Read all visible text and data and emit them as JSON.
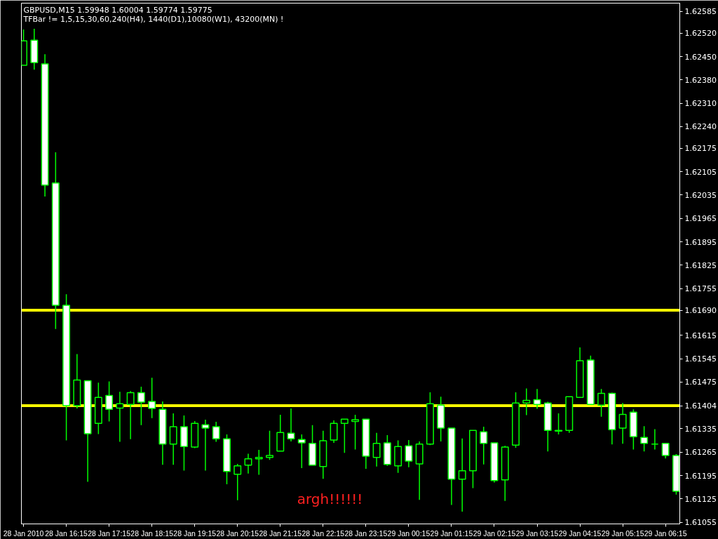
{
  "chart_data": {
    "type": "candlestick",
    "title": "GBPUSD,M15  1.59948 1.60004 1.59774 1.59775",
    "subtitle": "TFBar != 1,5,15,30,60,240(H4), 1440(D1),10080(W1), 43200(MN) !",
    "color": "#00ff00",
    "x": [
      "2010-01-28T15:15",
      "2010-01-28T15:30",
      "2010-01-28T15:45",
      "2010-01-28T16:00",
      "2010-01-28T16:15",
      "2010-01-28T16:30",
      "2010-01-28T16:45",
      "2010-01-28T17:00",
      "2010-01-28T17:15",
      "2010-01-28T17:30",
      "2010-01-28T17:45",
      "2010-01-28T18:00",
      "2010-01-28T18:15",
      "2010-01-28T18:30",
      "2010-01-28T18:45",
      "2010-01-28T19:00",
      "2010-01-28T19:15",
      "2010-01-28T19:30",
      "2010-01-28T19:45",
      "2010-01-28T20:00",
      "2010-01-28T20:15",
      "2010-01-28T20:30",
      "2010-01-28T20:45",
      "2010-01-28T21:00",
      "2010-01-28T21:15",
      "2010-01-28T21:30",
      "2010-01-28T21:45",
      "2010-01-28T22:00",
      "2010-01-28T22:15",
      "2010-01-28T22:30",
      "2010-01-28T22:45",
      "2010-01-28T23:00",
      "2010-01-28T23:15",
      "2010-01-28T23:30",
      "2010-01-28T23:45",
      "2010-01-29T00:00",
      "2010-01-29T00:15",
      "2010-01-29T00:30",
      "2010-01-29T00:45",
      "2010-01-29T01:00",
      "2010-01-29T01:15",
      "2010-01-29T01:30",
      "2010-01-29T01:45",
      "2010-01-29T02:00",
      "2010-01-29T02:15",
      "2010-01-29T02:30",
      "2010-01-29T02:45",
      "2010-01-29T03:00",
      "2010-01-29T03:15",
      "2010-01-29T03:30",
      "2010-01-29T03:45",
      "2010-01-29T04:00",
      "2010-01-29T04:15",
      "2010-01-29T04:30",
      "2010-01-29T04:45",
      "2010-01-29T05:00",
      "2010-01-29T05:15",
      "2010-01-29T05:30",
      "2010-01-29T05:45",
      "2010-01-29T06:00",
      "2010-01-29T06:15",
      "2010-01-29T06:30"
    ],
    "ohlc": [
      [
        1.62424,
        1.62531,
        1.62424,
        1.62497
      ],
      [
        1.62499,
        1.62533,
        1.62411,
        1.62432
      ],
      [
        1.62428,
        1.62457,
        1.62031,
        1.62065
      ],
      [
        1.62071,
        1.62163,
        1.61634,
        1.61705
      ],
      [
        1.61705,
        1.61738,
        1.613,
        1.61404
      ],
      [
        1.61404,
        1.61559,
        1.61396,
        1.61481
      ],
      [
        1.61479,
        1.61479,
        1.61176,
        1.6132
      ],
      [
        1.61351,
        1.61473,
        1.61319,
        1.61429
      ],
      [
        1.61435,
        1.61477,
        1.61357,
        1.61393
      ],
      [
        1.61397,
        1.61446,
        1.61296,
        1.6141
      ],
      [
        1.61408,
        1.61448,
        1.61304,
        1.61443
      ],
      [
        1.61443,
        1.61461,
        1.61346,
        1.61415
      ],
      [
        1.61417,
        1.61488,
        1.61367,
        1.61396
      ],
      [
        1.61393,
        1.61417,
        1.61227,
        1.61289
      ],
      [
        1.61289,
        1.61381,
        1.61227,
        1.61341
      ],
      [
        1.61341,
        1.61375,
        1.6121,
        1.61282
      ],
      [
        1.6128,
        1.61358,
        1.61277,
        1.61351
      ],
      [
        1.61347,
        1.61362,
        1.6121,
        1.61337
      ],
      [
        1.61341,
        1.61356,
        1.61296,
        1.61305
      ],
      [
        1.61305,
        1.61318,
        1.61169,
        1.61207
      ],
      [
        1.61199,
        1.6123,
        1.61121,
        1.61224
      ],
      [
        1.61226,
        1.6126,
        1.61201,
        1.61245
      ],
      [
        1.61245,
        1.61272,
        1.61197,
        1.61249
      ],
      [
        1.61249,
        1.61329,
        1.61242,
        1.61255
      ],
      [
        1.61268,
        1.61377,
        1.61268,
        1.61324
      ],
      [
        1.61322,
        1.61396,
        1.61297,
        1.61305
      ],
      [
        1.61303,
        1.61318,
        1.61217,
        1.61293
      ],
      [
        1.61291,
        1.61346,
        1.61226,
        1.61226
      ],
      [
        1.61222,
        1.61329,
        1.61185,
        1.61299
      ],
      [
        1.61301,
        1.6136,
        1.61293,
        1.61351
      ],
      [
        1.61351,
        1.61364,
        1.61263,
        1.61364
      ],
      [
        1.61357,
        1.61377,
        1.61273,
        1.61362
      ],
      [
        1.61364,
        1.61364,
        1.61215,
        1.61253
      ],
      [
        1.61249,
        1.61323,
        1.61222,
        1.61291
      ],
      [
        1.61293,
        1.61316,
        1.61224,
        1.61228
      ],
      [
        1.61224,
        1.613,
        1.61203,
        1.61282
      ],
      [
        1.61284,
        1.61301,
        1.6122,
        1.61238
      ],
      [
        1.6123,
        1.61297,
        1.61122,
        1.61289
      ],
      [
        1.61289,
        1.61444,
        1.61286,
        1.6141
      ],
      [
        1.61406,
        1.61431,
        1.61297,
        1.61337
      ],
      [
        1.61337,
        1.61337,
        1.61107,
        1.61184
      ],
      [
        1.61184,
        1.61306,
        1.61087,
        1.61209
      ],
      [
        1.61209,
        1.6133,
        1.61157,
        1.6133
      ],
      [
        1.61326,
        1.61341,
        1.61228,
        1.61291
      ],
      [
        1.61293,
        1.61293,
        1.61174,
        1.6118
      ],
      [
        1.61182,
        1.61284,
        1.61119,
        1.6128
      ],
      [
        1.61286,
        1.61444,
        1.61278,
        1.61412
      ],
      [
        1.61412,
        1.61456,
        1.61376,
        1.6142
      ],
      [
        1.61422,
        1.61454,
        1.61395,
        1.61408
      ],
      [
        1.61412,
        1.61416,
        1.61267,
        1.6133
      ],
      [
        1.6133,
        1.61381,
        1.61318,
        1.61328
      ],
      [
        1.6133,
        1.61431,
        1.61323,
        1.61431
      ],
      [
        1.61429,
        1.61579,
        1.61429,
        1.61539
      ],
      [
        1.61541,
        1.61554,
        1.61408,
        1.61408
      ],
      [
        1.61406,
        1.61454,
        1.61371,
        1.61441
      ],
      [
        1.61441,
        1.61443,
        1.61288,
        1.61332
      ],
      [
        1.61337,
        1.61412,
        1.6129,
        1.61378
      ],
      [
        1.61385,
        1.61393,
        1.61273,
        1.61311
      ],
      [
        1.61309,
        1.61343,
        1.61267,
        1.61291
      ],
      [
        1.61289,
        1.61334,
        1.61273,
        1.61289
      ],
      [
        1.61291,
        1.61291,
        1.61246,
        1.61255
      ],
      [
        1.61255,
        1.61259,
        1.61138,
        1.61148
      ]
    ],
    "colors": [
      "#000000",
      "#ffffff",
      "#ffffff",
      "#ffffff",
      "#ffffff",
      "#000000",
      "#ffffff",
      "#000000",
      "#ffffff",
      "#000000",
      "#000000",
      "#ffffff",
      "#ffffff",
      "#ffffff",
      "#000000",
      "#ffffff",
      "#000000",
      "#ffffff",
      "#ffffff",
      "#ffffff",
      "#000000",
      "#000000",
      "#000000",
      "#000000",
      "#000000",
      "#ffffff",
      "#ffffff",
      "#ffffff",
      "#000000",
      "#000000",
      "#000000",
      "#000000",
      "#ffffff",
      "#000000",
      "#ffffff",
      "#000000",
      "#ffffff",
      "#000000",
      "#000000",
      "#ffffff",
      "#ffffff",
      "#000000",
      "#000000",
      "#ffffff",
      "#ffffff",
      "#000000",
      "#000000",
      "#000000",
      "#ffffff",
      "#ffffff",
      "#ffffff",
      "#000000",
      "#000000",
      "#ffffff",
      "#000000",
      "#ffffff",
      "#000000",
      "#ffffff",
      "#ffffff",
      "#00ff00",
      "#ffffff",
      "#ffffff"
    ],
    "xlim": [
      "2010-01-28T15:12",
      "2010-01-29T06:35"
    ],
    "xticks": [
      {
        "value": "2010-01-28T15:15",
        "label": "28 Jan 2010"
      },
      {
        "value": "2010-01-28T16:15",
        "label": "28 Jan 16:15"
      },
      {
        "value": "2010-01-28T17:15",
        "label": "28 Jan 17:15"
      },
      {
        "value": "2010-01-28T18:15",
        "label": "28 Jan 18:15"
      },
      {
        "value": "2010-01-28T19:15",
        "label": "28 Jan 19:15"
      },
      {
        "value": "2010-01-28T20:15",
        "label": "28 Jan 20:15"
      },
      {
        "value": "2010-01-28T21:15",
        "label": "28 Jan 21:15"
      },
      {
        "value": "2010-01-28T22:15",
        "label": "28 Jan 22:15"
      },
      {
        "value": "2010-01-28T23:15",
        "label": "28 Jan 23:15"
      },
      {
        "value": "2010-01-29T00:15",
        "label": "29 Jan 00:15"
      },
      {
        "value": "2010-01-29T01:15",
        "label": "29 Jan 01:15"
      },
      {
        "value": "2010-01-29T02:15",
        "label": "29 Jan 02:15"
      },
      {
        "value": "2010-01-29T03:15",
        "label": "29 Jan 03:15"
      },
      {
        "value": "2010-01-29T04:15",
        "label": "29 Jan 04:15"
      },
      {
        "value": "2010-01-29T05:15",
        "label": "29 Jan 05:15"
      },
      {
        "value": "2010-01-29T06:15",
        "label": "29 Jan 06:15"
      }
    ],
    "ylim": [
      1.6105,
      1.6261
    ],
    "yticks": [
      1.62585,
      {
        "value": 1.6252,
        "label": "1.62520"
      },
      {
        "value": 1.6245,
        "label": "1.62450"
      },
      {
        "value": 1.6238,
        "label": "1.62380"
      },
      {
        "value": 1.6231,
        "label": "1.62310"
      },
      {
        "value": 1.6224,
        "label": "1.62240"
      },
      1.62175,
      1.62105,
      1.62035,
      1.61965,
      1.61895,
      1.61825,
      1.61755,
      1.61615,
      1.61545,
      1.61475,
      1.61335,
      1.61265,
      1.61195,
      1.61125,
      1.61055
    ],
    "ref_lines": [
      {
        "axis": "y",
        "value": 1.6169,
        "label": "1.61690",
        "color": "#ffff00"
      },
      {
        "axis": "y",
        "value": 1.61404,
        "label": "1.61404",
        "color": "#ffff00"
      }
    ],
    "annotations": [
      "argh!!!!!!"
    ]
  }
}
